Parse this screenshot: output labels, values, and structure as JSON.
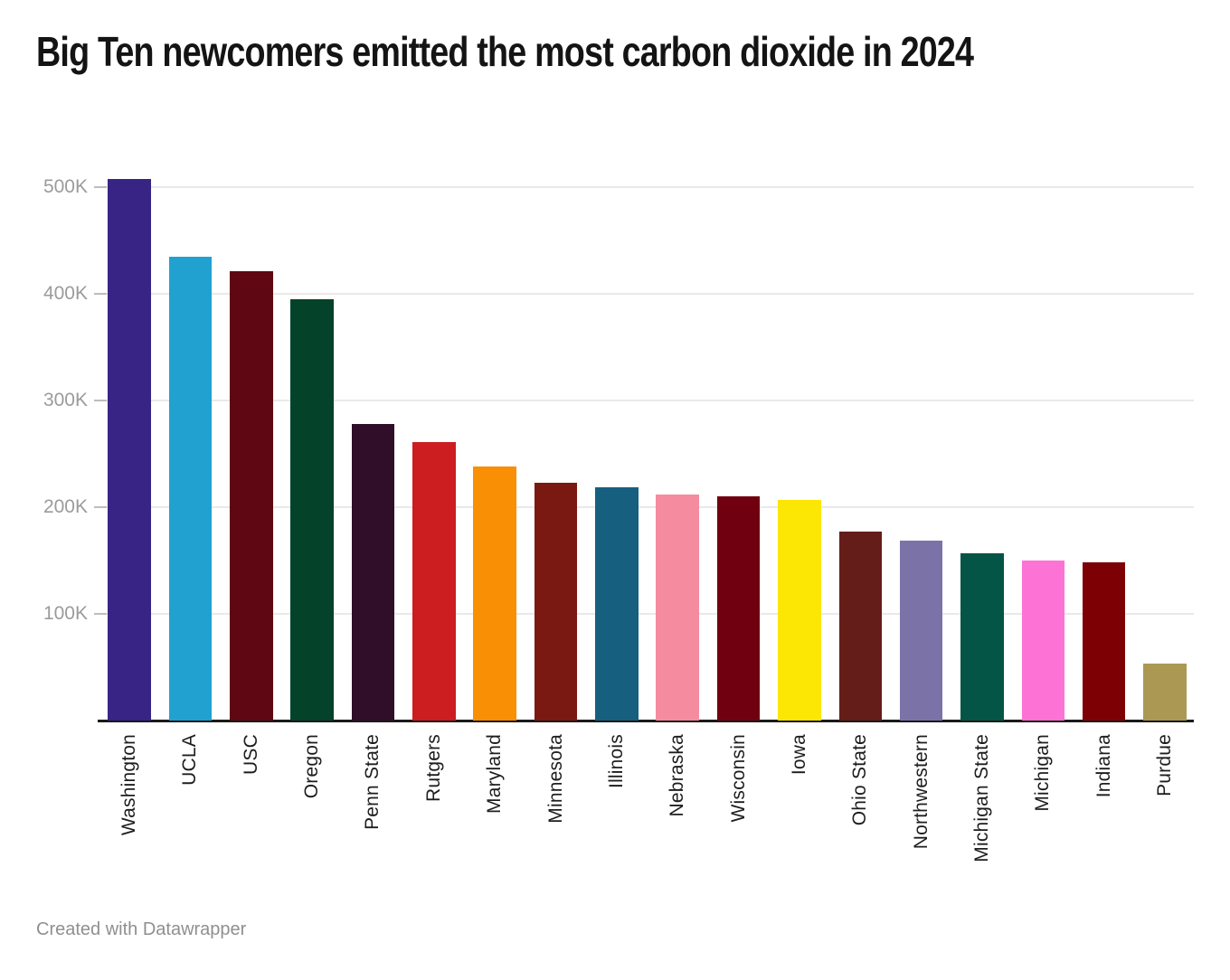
{
  "page": {
    "title": "Big Ten newcomers emitted the most carbon dioxide in 2024",
    "footer": "Created with Datawrapper"
  },
  "chart_data": {
    "type": "bar",
    "title": "Big Ten newcomers emitted the most carbon dioxide in 2024",
    "xlabel": "",
    "ylabel": "",
    "categories": [
      "Washington",
      "UCLA",
      "USC",
      "Oregon",
      "Penn State",
      "Rutgers",
      "Maryland",
      "Minnesota",
      "Illinois",
      "Nebraska",
      "Wisconsin",
      "Iowa",
      "Ohio State",
      "Northwestern",
      "Michigan State",
      "Michigan",
      "Indiana",
      "Purdue"
    ],
    "values": [
      508000,
      435000,
      421000,
      395000,
      278000,
      261000,
      238000,
      223000,
      219000,
      212000,
      210000,
      207000,
      177000,
      169000,
      157000,
      150000,
      148000,
      53000
    ],
    "bar_colors": [
      "#372484",
      "#21A1CF",
      "#5F0712",
      "#04422A",
      "#300D28",
      "#CC1D20",
      "#F98F04",
      "#7A1911",
      "#175F7E",
      "#F58B9F",
      "#700010",
      "#FCE603",
      "#641D18",
      "#7B73A8",
      "#045546",
      "#FC73D5",
      "#7D0004",
      "#AB9853"
    ],
    "ylim": [
      0,
      520000
    ],
    "yticks": {
      "values": [
        100000,
        200000,
        300000,
        400000,
        500000
      ],
      "labels": [
        "100K",
        "200K",
        "300K",
        "400K",
        "500K"
      ]
    },
    "grid": "horizontal",
    "legend_position": "none",
    "x_label_rotation": -90,
    "gridline_color": "#e9e9e9",
    "axis_line_color": "#1a1a1a",
    "tick_label_color": "#9b9b9b",
    "category_label_color": "#1d1d1d"
  }
}
